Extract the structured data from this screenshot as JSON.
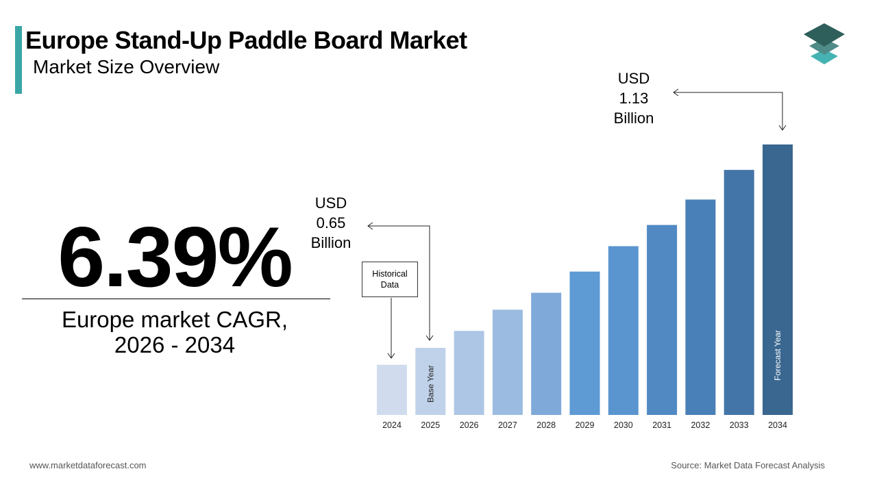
{
  "header": {
    "title": "Europe Stand-Up Paddle Board Market",
    "subtitle": "Market Size Overview"
  },
  "kpi": {
    "value": "6.39%",
    "label_line1": "Europe market CAGR,",
    "label_line2": "2026 - 2034"
  },
  "callouts": {
    "start": {
      "line1": "USD",
      "line2": "0.65",
      "line3": "Billion"
    },
    "end": {
      "line1": "USD",
      "line2": "1.13",
      "line3": "Billion"
    },
    "historical": {
      "line1": "Historical",
      "line2": "Data"
    }
  },
  "footer": {
    "website": "www.marketdataforecast.com",
    "source": "Source: Market Data Forecast Analysis"
  },
  "logo": {
    "icon": "stacked-layers-icon",
    "colors": [
      "#2f5f5a",
      "#4f8b88",
      "#45b3b3"
    ]
  },
  "chart_data": {
    "type": "bar",
    "categories": [
      "2024",
      "2025",
      "2026",
      "2027",
      "2028",
      "2029",
      "2030",
      "2031",
      "2032",
      "2033",
      "2034"
    ],
    "values": [
      0.61,
      0.65,
      0.69,
      0.74,
      0.78,
      0.83,
      0.89,
      0.94,
      1.0,
      1.07,
      1.13
    ],
    "unit": "USD Billion",
    "bar_labels": {
      "2025": "Base Year",
      "2034": "Forecast Year"
    },
    "colors": [
      "#d0dcee",
      "#c0d2ea",
      "#adc6e6",
      "#9bbbe0",
      "#7fa9d8",
      "#5e9ad4",
      "#5a95cf",
      "#5189c2",
      "#4a80b8",
      "#4375a8",
      "#3a6790"
    ],
    "grid": false,
    "axis_visible": false
  }
}
